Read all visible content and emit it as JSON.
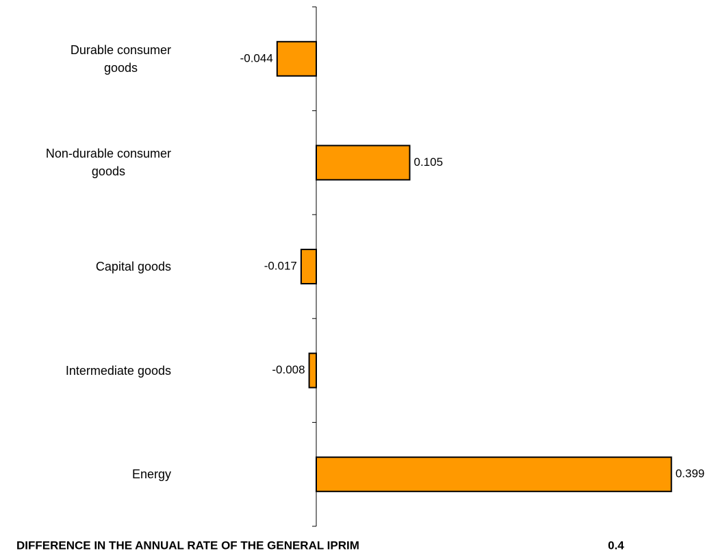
{
  "chart_data": {
    "type": "hbar",
    "categories": [
      "Durable consumer\ngoods",
      "Non-durable consumer\ngoods",
      "Capital goods",
      "Intermediate goods",
      "Energy"
    ],
    "values": [
      -0.044,
      0.105,
      -0.017,
      -0.008,
      0.399
    ],
    "color": "#ff9900",
    "xlim": [
      -0.1,
      0.4
    ],
    "summary": {
      "label": "DIFFERENCE IN THE ANNUAL RATE OF THE GENERAL IPRIM",
      "value": 0.4
    }
  }
}
